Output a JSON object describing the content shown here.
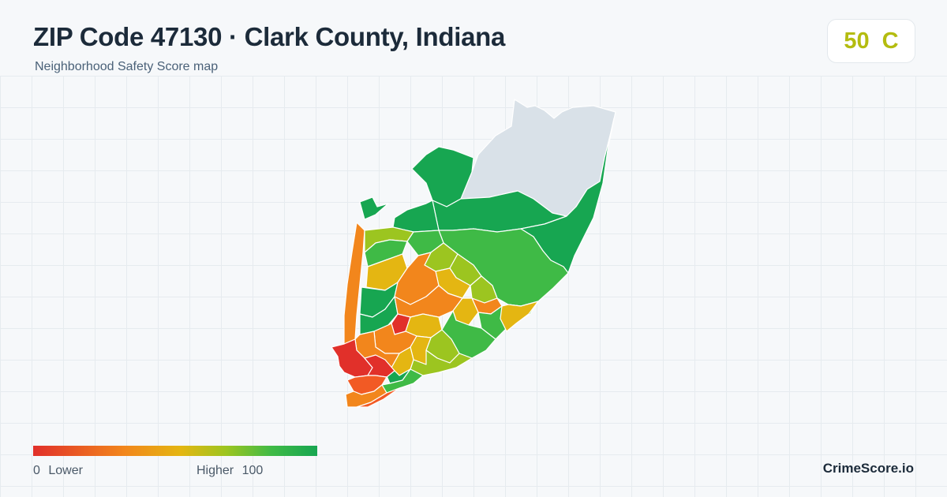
{
  "header": {
    "title": "ZIP Code 47130 · Clark County, Indiana",
    "subtitle": "Neighborhood Safety Score map"
  },
  "score_badge": {
    "score": "50",
    "grade": "C",
    "color": "#b4bc10"
  },
  "legend": {
    "min_value": "0",
    "min_label": "Lower",
    "max_label": "Higher",
    "max_value": "100",
    "scale_colors": [
      "#e1302a",
      "#f2861c",
      "#e4b612",
      "#9cc520",
      "#3fba46",
      "#17a651"
    ]
  },
  "map": {
    "no_data_color": "#d9e1e8",
    "region_outline_color": "#ffffff"
  },
  "brand": "CrimeScore.io"
}
